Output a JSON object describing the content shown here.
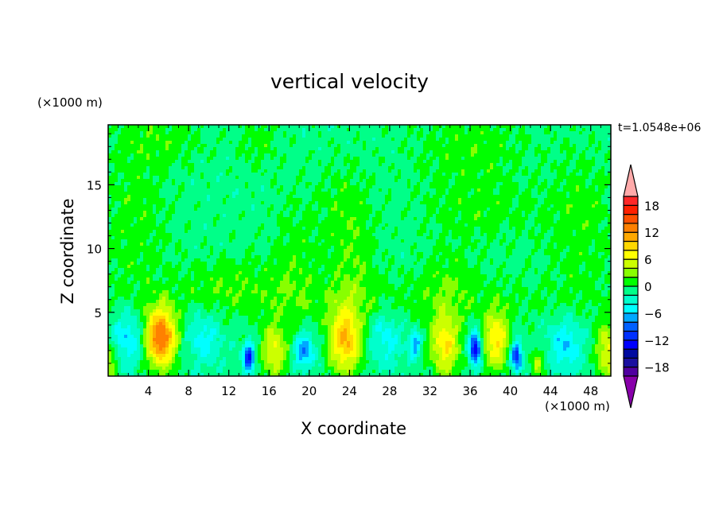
{
  "chart_data": {
    "type": "heatmap",
    "title": "vertical velocity",
    "xlabel": "X coordinate",
    "ylabel": "Z coordinate",
    "x_units": "(×1000 m)",
    "y_units": "(×1000 m)",
    "time_label": "t=1.0548e+06",
    "xlim": [
      0,
      50
    ],
    "ylim": [
      0,
      19.7
    ],
    "x_ticks": [
      4,
      8,
      12,
      16,
      20,
      24,
      28,
      32,
      36,
      40,
      44,
      48
    ],
    "y_ticks": [
      5,
      10,
      15
    ],
    "colorbar": {
      "levels": [
        -20,
        -18,
        -16,
        -14,
        -12,
        -10,
        -8,
        -6,
        -4,
        -2,
        0,
        2,
        4,
        6,
        8,
        10,
        12,
        14,
        16,
        18,
        20
      ],
      "colors": [
        "#5000a0",
        "#1a10a0",
        "#000aa0",
        "#0000ff",
        "#0030ff",
        "#0060ff",
        "#00a8ff",
        "#00ffff",
        "#00ffcc",
        "#00ff88",
        "#00ff00",
        "#88ff00",
        "#ccff00",
        "#ffff00",
        "#ffd800",
        "#ffa800",
        "#ff8000",
        "#ff5000",
        "#ff2000",
        "#ff2828"
      ],
      "over_color": "#ffaaaa",
      "under_color": "#8800aa",
      "tick_labels": [
        "18",
        "12",
        "6",
        "0",
        "-6",
        "-12",
        "-18"
      ],
      "tick_values": [
        18,
        12,
        6,
        0,
        -6,
        -12,
        -18
      ]
    },
    "background_value": -1,
    "features": [
      {
        "x": 5.2,
        "z": 3.0,
        "sx": 1.1,
        "sz": 1.6,
        "w": 15
      },
      {
        "x": 16.5,
        "z": 2.0,
        "sx": 0.9,
        "sz": 1.5,
        "w": 7
      },
      {
        "x": 23.6,
        "z": 2.8,
        "sx": 1.1,
        "sz": 1.8,
        "w": 11
      },
      {
        "x": 33.5,
        "z": 2.4,
        "sx": 1.0,
        "sz": 1.7,
        "w": 9
      },
      {
        "x": 38.6,
        "z": 2.8,
        "sx": 0.9,
        "sz": 1.6,
        "w": 9
      },
      {
        "x": 49.6,
        "z": 2.0,
        "sx": 0.8,
        "sz": 1.5,
        "w": 7
      },
      {
        "x": 0.1,
        "z": 1.2,
        "sx": 0.5,
        "sz": 1.0,
        "w": 6
      },
      {
        "x": 42.7,
        "z": 1.0,
        "sx": 0.5,
        "sz": 0.8,
        "w": 5
      },
      {
        "x": 14.0,
        "z": 1.5,
        "sx": 0.4,
        "sz": 0.8,
        "w": -11
      },
      {
        "x": 19.5,
        "z": 2.0,
        "sx": 0.7,
        "sz": 1.0,
        "w": -7
      },
      {
        "x": 36.5,
        "z": 2.2,
        "sx": 0.4,
        "sz": 0.9,
        "w": -13
      },
      {
        "x": 40.6,
        "z": 1.6,
        "sx": 0.4,
        "sz": 0.8,
        "w": -11
      },
      {
        "x": 30.5,
        "z": 2.5,
        "sx": 0.4,
        "sz": 0.7,
        "w": -7
      },
      {
        "x": 2.0,
        "z": 3.0,
        "sx": 1.2,
        "sz": 1.5,
        "w": -5
      },
      {
        "x": 9.5,
        "z": 3.0,
        "sx": 1.2,
        "sz": 1.5,
        "w": -4
      },
      {
        "x": 27.5,
        "z": 3.0,
        "sx": 1.2,
        "sz": 1.5,
        "w": -4
      },
      {
        "x": 45.5,
        "z": 2.5,
        "sx": 1.2,
        "sz": 1.5,
        "w": -5
      },
      {
        "x": 2.5,
        "z": 12.0,
        "sx": 2.5,
        "sz": 4.0,
        "w": 2.2
      },
      {
        "x": 5.0,
        "z": 18.5,
        "sx": 3.0,
        "sz": 1.5,
        "w": 2.2
      },
      {
        "x": 15.0,
        "z": 18.5,
        "sx": 1.5,
        "sz": 1.5,
        "w": 2.0
      },
      {
        "x": 18.5,
        "z": 9.0,
        "sx": 1.8,
        "sz": 3.5,
        "w": 2.0
      },
      {
        "x": 23.5,
        "z": 13.0,
        "sx": 2.0,
        "sz": 3.0,
        "w": 2.0
      },
      {
        "x": 24.5,
        "z": 8.0,
        "sx": 1.5,
        "sz": 3.0,
        "w": 2.0
      },
      {
        "x": 36.0,
        "z": 18.0,
        "sx": 4.0,
        "sz": 2.2,
        "w": 2.2
      },
      {
        "x": 37.0,
        "z": 13.0,
        "sx": 4.0,
        "sz": 1.8,
        "w": 2.0
      },
      {
        "x": 47.0,
        "z": 12.0,
        "sx": 2.5,
        "sz": 4.0,
        "w": 2.2
      },
      {
        "x": 34.0,
        "z": 7.5,
        "sx": 2.0,
        "sz": 2.0,
        "w": 2.0
      },
      {
        "x": 12.0,
        "z": 7.5,
        "sx": 3.0,
        "sz": 1.5,
        "w": 1.8
      },
      {
        "x": 25.0,
        "z": 6.0,
        "sx": 20.0,
        "sz": 1.5,
        "w": 1.6
      }
    ]
  }
}
